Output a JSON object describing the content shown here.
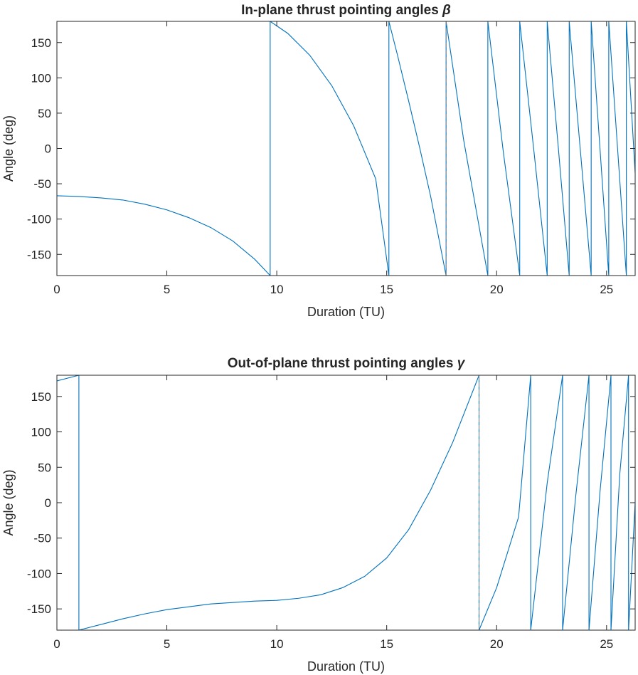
{
  "chart_data": [
    {
      "type": "line",
      "title": "In-plane thrust pointing angles",
      "title_symbol": "β",
      "xlabel": "Duration (TU)",
      "ylabel": "Angle (deg)",
      "xlim": [
        0,
        26.3
      ],
      "ylim": [
        -180,
        180
      ],
      "xticks": [
        0,
        5,
        10,
        15,
        20,
        25
      ],
      "yticks": [
        -150,
        -100,
        -50,
        0,
        50,
        100,
        150
      ],
      "grid": false,
      "series_color": "#0072BD",
      "marker_line_color": "#808080",
      "marker_line_x": 17.7,
      "series": [
        {
          "x": [
            0,
            1,
            2,
            3,
            4,
            5,
            6,
            7,
            8,
            9,
            9.7,
            9.7,
            10.5,
            11.5,
            12.5,
            13.5,
            14.5,
            15.1,
            15.1,
            15.5,
            16,
            16.5,
            17,
            17.7,
            17.7,
            18.5,
            19.6,
            19.6,
            20.3,
            21.05,
            21.05,
            21.7,
            22.3,
            22.3,
            22.8,
            23.3,
            23.3,
            23.8,
            24.3,
            24.3,
            24.7,
            25.1,
            25.1,
            25.5,
            25.9,
            25.9,
            26.3
          ],
          "y": [
            -67,
            -68,
            -70,
            -73,
            -79,
            -87,
            -98,
            -112,
            -131,
            -157,
            -180,
            180,
            163,
            132,
            89,
            32,
            -43,
            -180,
            180,
            131,
            67,
            1,
            -68,
            -180,
            180,
            12,
            -180,
            180,
            -4,
            -180,
            180,
            -5,
            -180,
            180,
            3,
            -180,
            180,
            0,
            -180,
            180,
            0,
            -180,
            180,
            0,
            -180,
            180,
            -35
          ]
        }
      ]
    },
    {
      "type": "line",
      "title": "Out-of-plane thrust pointing angles",
      "title_symbol": "γ",
      "xlabel": "Duration (TU)",
      "ylabel": "Angle (deg)",
      "xlim": [
        0,
        26.3
      ],
      "ylim": [
        -180,
        180
      ],
      "xticks": [
        0,
        5,
        10,
        15,
        20,
        25
      ],
      "yticks": [
        -150,
        -100,
        -50,
        0,
        50,
        100,
        150
      ],
      "grid": false,
      "series_color": "#0072BD",
      "marker_line_color": "#808080",
      "marker_line_x": 19.2,
      "series": [
        {
          "x": [
            0,
            1,
            1,
            2,
            3,
            4,
            5,
            6,
            7,
            8,
            9,
            10,
            11,
            12,
            13,
            14,
            15,
            16,
            17,
            18,
            19.2,
            19.2,
            20,
            21,
            21.55,
            21.55,
            22.3,
            23,
            23,
            23.6,
            24.2,
            24.2,
            24.7,
            25.2,
            25.2,
            25.6,
            26,
            26,
            26.3
          ],
          "y": [
            172,
            180,
            -180,
            -172,
            -164,
            -157,
            -151,
            -147,
            -143,
            -141,
            -139,
            -138,
            -135,
            -130,
            -120,
            -104,
            -78,
            -38,
            18,
            85,
            180,
            -180,
            -120,
            -20,
            180,
            -180,
            28,
            180,
            -180,
            10,
            180,
            -180,
            15,
            180,
            -180,
            40,
            180,
            -180,
            0
          ]
        }
      ]
    }
  ]
}
